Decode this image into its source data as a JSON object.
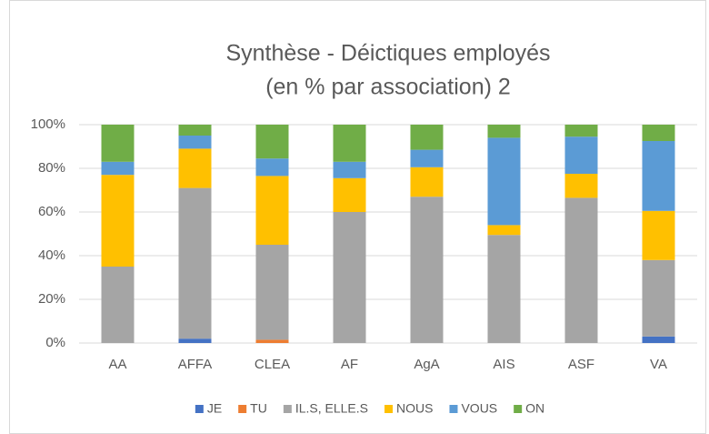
{
  "chart_data": {
    "type": "stacked_bar",
    "title": "Synthèse - Déictiques employés",
    "subtitle": "(en % par association) 2",
    "categories": [
      "AA",
      "AFFA",
      "CLEA",
      "AF",
      "AgA",
      "AIS",
      "ASF",
      "VA"
    ],
    "series": [
      {
        "name": "JE",
        "color": "#4472c4",
        "values": [
          0,
          2,
          0,
          0,
          0,
          0,
          0,
          3
        ]
      },
      {
        "name": "TU",
        "color": "#ed7d31",
        "values": [
          0,
          0,
          1.5,
          0,
          0,
          0,
          0,
          0
        ]
      },
      {
        "name": "IL.S, ELLE.S",
        "color": "#a5a5a5",
        "values": [
          35,
          69,
          43.5,
          60,
          67,
          49.5,
          66.5,
          35
        ]
      },
      {
        "name": "NOUS",
        "color": "#ffc000",
        "values": [
          42,
          18,
          31.5,
          15.5,
          13.5,
          4.5,
          11,
          22.5
        ]
      },
      {
        "name": "VOUS",
        "color": "#5b9bd5",
        "values": [
          6,
          6,
          8,
          7.5,
          8,
          40,
          17,
          32
        ]
      },
      {
        "name": "ON",
        "color": "#70ad47",
        "values": [
          17,
          5,
          15.5,
          17,
          11.5,
          6,
          5.5,
          7.5
        ]
      }
    ],
    "ylim": [
      0,
      100
    ],
    "yticks": [
      {
        "value": 0,
        "label": "0%"
      },
      {
        "value": 20,
        "label": "20%"
      },
      {
        "value": 40,
        "label": "40%"
      },
      {
        "value": 60,
        "label": "60%"
      },
      {
        "value": 80,
        "label": "80%"
      },
      {
        "value": 100,
        "label": "100%"
      }
    ],
    "grid": true,
    "legend": "bottom"
  }
}
